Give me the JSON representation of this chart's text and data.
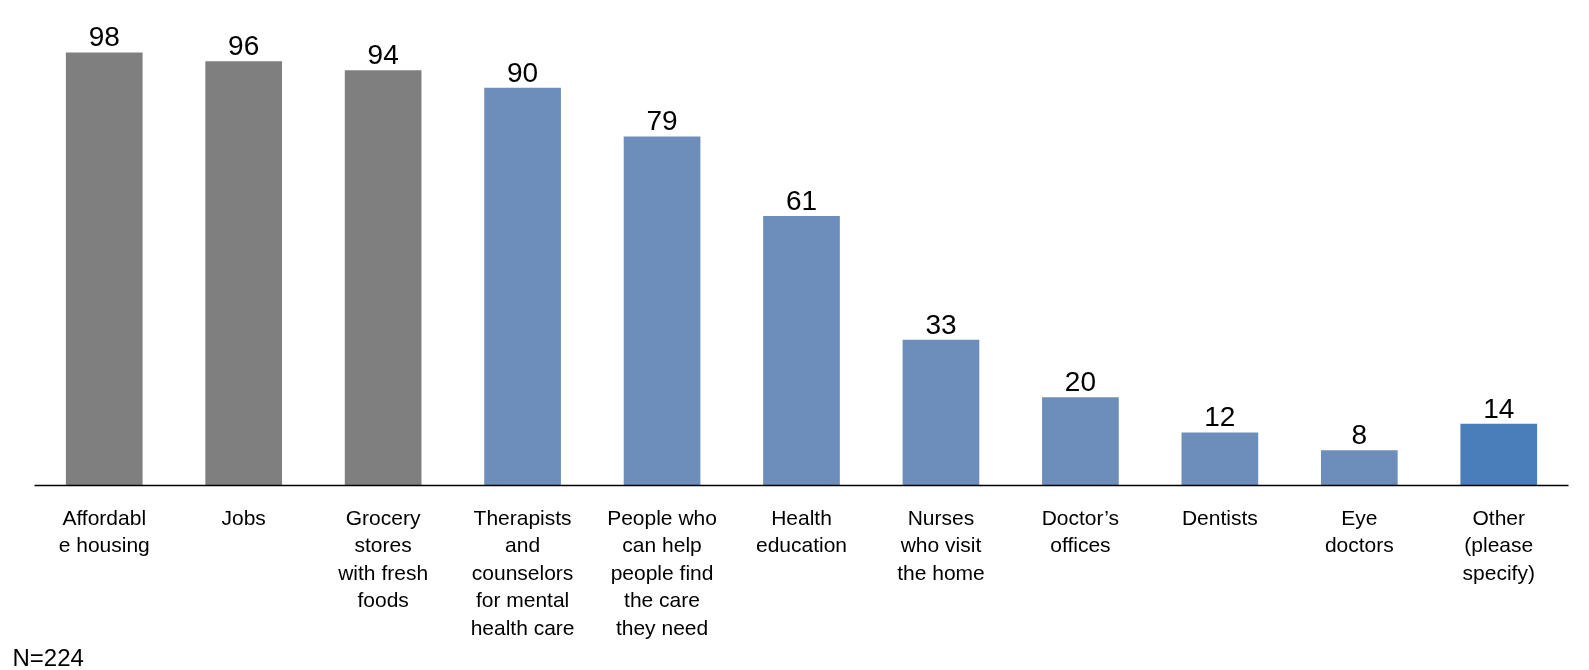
{
  "chart_data": {
    "type": "bar",
    "categories": [
      "Affordabl\ne housing",
      "Jobs",
      "Grocery\nstores\nwith fresh\nfoods",
      "Therapists\nand\ncounselors\nfor mental\nhealth care",
      "People who\ncan help\npeople find\nthe care\nthey need",
      "Health\neducation",
      "Nurses\nwho visit\nthe home",
      "Doctor’s\noffices",
      "Dentists",
      "Eye\ndoctors",
      "Other\n(please\nspecify)"
    ],
    "values": [
      98,
      96,
      94,
      90,
      79,
      61,
      33,
      20,
      12,
      8,
      14
    ],
    "colors": [
      "#7f7f7f",
      "#7f7f7f",
      "#7f7f7f",
      "#6d8ebb",
      "#6d8ebb",
      "#6d8ebb",
      "#6d8ebb",
      "#6d8ebb",
      "#6d8ebb",
      "#6d8ebb",
      "#4a7ebb"
    ],
    "data_labels": true,
    "annotations": [
      "N=224"
    ],
    "grid": false
  }
}
